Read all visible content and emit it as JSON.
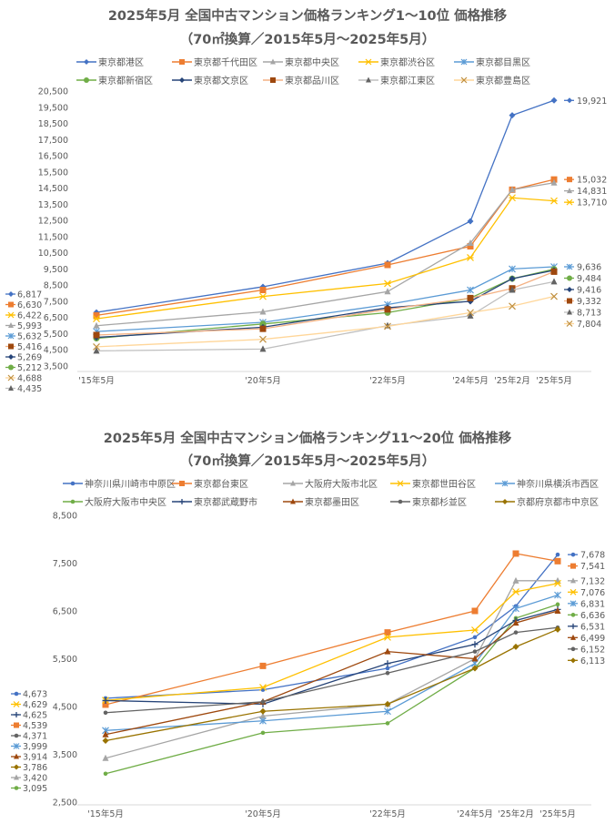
{
  "chart_data": [
    {
      "type": "line",
      "title": "2025年5月 全国中古マンション価格ランキング1～10位 価格推移",
      "subtitle": "（70㎡換算／2015年5月～2025年5月）",
      "categories": [
        "'15年5月",
        "'20年5月",
        "'22年5月",
        "'24年5月",
        "'25年2月",
        "'25年5月"
      ],
      "x_positions_years": [
        2015.33,
        2020.33,
        2022.33,
        2024.33,
        2025.08,
        2025.33
      ],
      "ylim": [
        3500,
        20500
      ],
      "yticks": [
        3500,
        4500,
        5500,
        6500,
        7500,
        8500,
        9500,
        10500,
        11500,
        12500,
        13500,
        14500,
        15500,
        16500,
        17500,
        18500,
        19500,
        20500
      ],
      "legend": "top",
      "grid": false,
      "series": [
        {
          "name": "東京都港区",
          "color": "#4472C4",
          "marker": "diamond",
          "values": [
            6817,
            8400,
            9860,
            12450,
            19000,
            19921
          ],
          "start_label": "6,817",
          "end_label": "19,921"
        },
        {
          "name": "東京都千代田区",
          "color": "#ED7D31",
          "marker": "square",
          "values": [
            6630,
            8200,
            9750,
            10900,
            14400,
            15032
          ],
          "start_label": "6,630",
          "end_label": "15,032"
        },
        {
          "name": "東京都中央区",
          "color": "#A5A5A5",
          "marker": "triangle",
          "values": [
            5993,
            6850,
            8100,
            11100,
            14400,
            14831
          ],
          "start_label": "5,993",
          "end_label": "14,831"
        },
        {
          "name": "東京都渋谷区",
          "color": "#FFC000",
          "marker": "xstar",
          "values": [
            6422,
            7800,
            8600,
            10200,
            13900,
            13710
          ],
          "start_label": "6,422",
          "end_label": "13,710"
        },
        {
          "name": "東京都目黒区",
          "color": "#5B9BD5",
          "marker": "asterisk",
          "values": [
            5632,
            6200,
            7300,
            8200,
            9500,
            9636
          ],
          "start_label": "5,632",
          "end_label": "9,636"
        },
        {
          "name": "東京都新宿区",
          "color": "#70AD47",
          "marker": "circle",
          "values": [
            5212,
            6100,
            6800,
            7700,
            8900,
            9484
          ],
          "start_label": "5,212",
          "end_label": "9,484"
        },
        {
          "name": "東京都文京区",
          "color": "#264478",
          "marker": "diamond",
          "values": [
            5269,
            5900,
            7100,
            7500,
            8900,
            9416
          ],
          "start_label": "5,269",
          "end_label": "9,416"
        },
        {
          "name": "東京都品川区",
          "color": "#9E480E",
          "line_color": "#F4B183",
          "marker": "square",
          "values": [
            5416,
            5800,
            7000,
            7700,
            8300,
            9332
          ],
          "start_label": "5,416",
          "end_label": "9,332"
        },
        {
          "name": "東京都江東区",
          "color": "#636363",
          "line_color": "#BFBFBF",
          "marker": "triangle",
          "values": [
            4435,
            4550,
            6000,
            6600,
            8200,
            8713
          ],
          "start_label": "4,435",
          "end_label": "8,713"
        },
        {
          "name": "東京都豊島区",
          "color": "#C09040",
          "line_color": "#FFD699",
          "marker": "x",
          "values": [
            4688,
            5150,
            5950,
            6800,
            7200,
            7804
          ],
          "start_label": "4,688",
          "end_label": "7,804"
        }
      ]
    },
    {
      "type": "line",
      "title": "2025年5月 全国中古マンション価格ランキング11～20位 価格推移",
      "subtitle": "（70㎡換算／2015年5月～2025年5月）",
      "categories": [
        "'15年5月",
        "'20年5月",
        "'22年5月",
        "'24年5月",
        "'25年2月",
        "'25年5月"
      ],
      "x_positions_years": [
        2015.33,
        2020.33,
        2022.33,
        2024.33,
        2025.08,
        2025.33
      ],
      "ylim": [
        2500,
        8500
      ],
      "yticks": [
        2500,
        3500,
        4500,
        5500,
        6500,
        7500,
        8500
      ],
      "legend": "top",
      "grid": false,
      "series": [
        {
          "name": "神奈川県川崎市中原区",
          "color": "#4472C4",
          "marker": "dot",
          "values": [
            4673,
            4850,
            5300,
            5950,
            6600,
            7678
          ],
          "start_label": "4,673",
          "end_label": "7,678"
        },
        {
          "name": "東京都台東区",
          "color": "#ED7D31",
          "marker": "square",
          "values": [
            4539,
            5350,
            6050,
            6500,
            7700,
            7541
          ],
          "start_label": "4,539",
          "end_label": "7,541"
        },
        {
          "name": "大阪府大阪市北区",
          "color": "#A5A5A5",
          "marker": "triangle",
          "values": [
            3420,
            4300,
            4550,
            5500,
            7132,
            7132
          ],
          "start_label": "3,420",
          "end_label": "7,132"
        },
        {
          "name": "東京都世田谷区",
          "color": "#FFC000",
          "marker": "xstar",
          "values": [
            4629,
            4900,
            5950,
            6100,
            6900,
            7076
          ],
          "start_label": "4,629",
          "end_label": "7,076"
        },
        {
          "name": "神奈川県横浜市西区",
          "color": "#5B9BD5",
          "marker": "asterisk",
          "values": [
            3999,
            4200,
            4400,
            5400,
            6550,
            6831
          ],
          "start_label": "3,999",
          "end_label": "6,831"
        },
        {
          "name": "大阪府大阪市中央区",
          "color": "#70AD47",
          "marker": "dot",
          "values": [
            3095,
            3950,
            4150,
            5300,
            6350,
            6636
          ],
          "start_label": "3,095",
          "end_label": "6,636"
        },
        {
          "name": "東京都武蔵野市",
          "color": "#264478",
          "marker": "plus",
          "values": [
            4625,
            4550,
            5400,
            5800,
            6300,
            6531
          ],
          "start_label": "4,625",
          "end_label": "6,531"
        },
        {
          "name": "東京都墨田区",
          "color": "#9E480E",
          "marker": "triangle",
          "values": [
            3914,
            4600,
            5650,
            5500,
            6250,
            6499
          ],
          "start_label": "3,914",
          "end_label": "6,499"
        },
        {
          "name": "東京都杉並区",
          "color": "#636363",
          "marker": "dot",
          "values": [
            4371,
            4600,
            5200,
            5650,
            6050,
            6152
          ],
          "start_label": "4,371",
          "end_label": "6,152"
        },
        {
          "name": "京都府京都市中京区",
          "color": "#997300",
          "marker": "diamond",
          "values": [
            3786,
            4400,
            4550,
            5300,
            5750,
            6113
          ],
          "start_label": "3,786",
          "end_label": "6,113"
        }
      ]
    }
  ]
}
